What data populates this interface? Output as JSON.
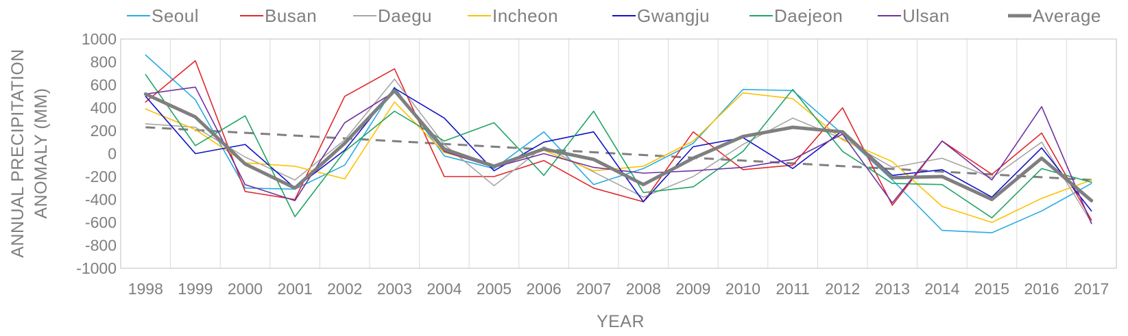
{
  "chart_data": {
    "type": "line",
    "title": "",
    "xlabel": "YEAR",
    "ylabel": [
      "ANNUAL PRECIPITATION",
      "ANOMALY (MM)"
    ],
    "ylim": [
      -1000,
      1000
    ],
    "yticks": [
      1000,
      800,
      600,
      400,
      200,
      0,
      -200,
      -400,
      -600,
      -800,
      -1000
    ],
    "grid": "vertical",
    "legend": "top",
    "categories": [
      "1998",
      "1999",
      "2000",
      "2001",
      "2002",
      "2003",
      "2004",
      "2005",
      "2006",
      "2007",
      "2008",
      "2009",
      "2010",
      "2011",
      "2012",
      "2013",
      "2014",
      "2015",
      "2016",
      "2017"
    ],
    "series": [
      {
        "name": "Seoul",
        "color": "#29ABE2",
        "width": 1.6,
        "values": [
          860,
          470,
          -300,
          -310,
          -100,
          580,
          -20,
          -130,
          190,
          -270,
          -130,
          90,
          560,
          550,
          170,
          -230,
          -670,
          -690,
          -500,
          -260
        ]
      },
      {
        "name": "Busan",
        "color": "#E0262B",
        "width": 1.6,
        "values": [
          450,
          810,
          -330,
          -400,
          500,
          740,
          -200,
          -200,
          -60,
          -300,
          -420,
          190,
          -140,
          -100,
          400,
          -450,
          110,
          -180,
          180,
          -580
        ]
      },
      {
        "name": "Daegu",
        "color": "#A6A6A6",
        "width": 1.6,
        "values": [
          260,
          230,
          -30,
          -230,
          120,
          650,
          80,
          -280,
          60,
          -160,
          -380,
          -200,
          80,
          310,
          130,
          -120,
          -40,
          -210,
          100,
          -600
        ]
      },
      {
        "name": "Incheon",
        "color": "#FFC000",
        "width": 1.6,
        "values": [
          390,
          210,
          -80,
          -110,
          -220,
          450,
          10,
          -110,
          30,
          -150,
          -110,
          110,
          530,
          480,
          120,
          -70,
          -460,
          -600,
          -390,
          -230
        ]
      },
      {
        "name": "Gwangju",
        "color": "#1010C8",
        "width": 1.6,
        "values": [
          500,
          0,
          80,
          -300,
          30,
          570,
          310,
          -150,
          100,
          190,
          -420,
          60,
          140,
          -130,
          200,
          -190,
          -140,
          -380,
          50,
          -500
        ]
      },
      {
        "name": "Daejeon",
        "color": "#1FA463",
        "width": 1.6,
        "values": [
          690,
          70,
          330,
          -550,
          20,
          370,
          110,
          270,
          -190,
          370,
          -340,
          -290,
          20,
          560,
          20,
          -260,
          -270,
          -560,
          -130,
          -250
        ]
      },
      {
        "name": "Ulsan",
        "color": "#7030A0",
        "width": 1.6,
        "values": [
          520,
          580,
          -270,
          -410,
          270,
          540,
          20,
          -120,
          0,
          -120,
          -170,
          -150,
          -120,
          -50,
          170,
          -430,
          110,
          -230,
          410,
          -610
        ]
      },
      {
        "name": "Average",
        "color": "#7F7F7F",
        "width": 5,
        "values": [
          520,
          320,
          -90,
          -300,
          90,
          550,
          40,
          -110,
          40,
          -50,
          -270,
          -40,
          150,
          230,
          190,
          -210,
          -200,
          -400,
          -40,
          -410
        ]
      }
    ],
    "trendline": {
      "color": "#7F7F7F",
      "dash": true,
      "values": [
        230,
        -230
      ]
    }
  }
}
